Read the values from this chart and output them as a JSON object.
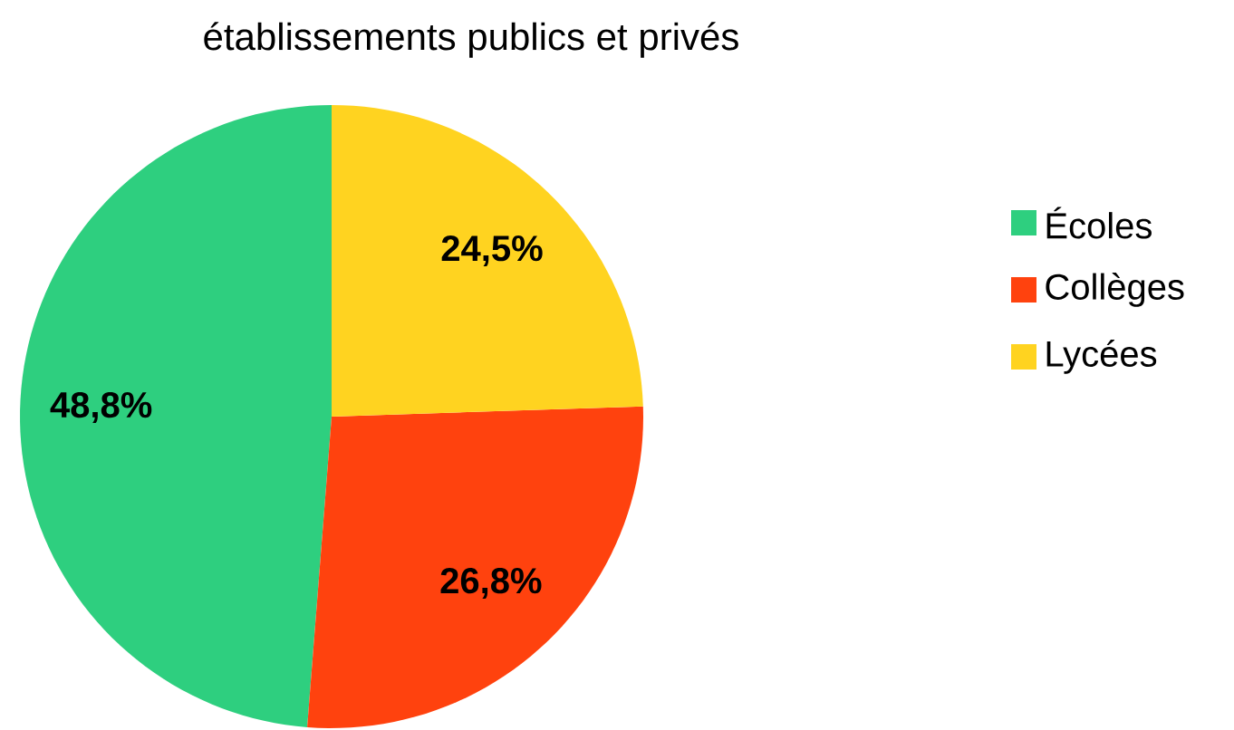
{
  "chart_data": {
    "type": "pie",
    "title": "établissements publics et privés",
    "categories": [
      "Écoles",
      "Collèges",
      "Lycées"
    ],
    "values": [
      48.8,
      26.8,
      24.5
    ],
    "colors": [
      "#2ecf7f",
      "#ff420e",
      "#ffd320"
    ],
    "value_labels": [
      "48,8%",
      "26,8%",
      "24,5%"
    ],
    "legend": "right"
  }
}
